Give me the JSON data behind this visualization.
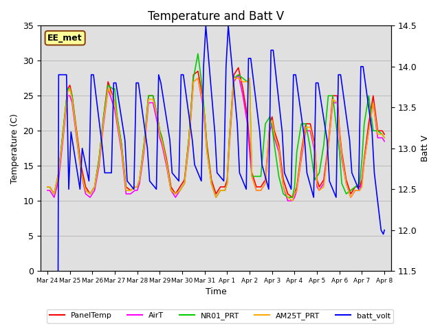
{
  "title": "Temperature and Batt V",
  "xlabel": "Time",
  "ylabel_left": "Temperature (C)",
  "ylabel_right": "Batt V",
  "ylim_left": [
    0,
    35
  ],
  "ylim_right": [
    11.5,
    14.5
  ],
  "background_color": "#ffffff",
  "plot_bg_color": "#e0e0e0",
  "annotation_text": "EE_met",
  "annotation_box_color": "#ffff99",
  "annotation_border_color": "#8b4513",
  "x_tick_labels": [
    "Mar 24",
    "Mar 25",
    "Mar 26",
    "Mar 27",
    "Mar 28",
    "Mar 29",
    "Mar 30",
    "Mar 31",
    "Apr 1",
    "Apr 2",
    "Apr 3",
    "Apr 4",
    "Apr 5",
    "Apr 6",
    "Apr 7",
    "Apr 8"
  ],
  "x_tick_positions": [
    0,
    1,
    2,
    3,
    4,
    5,
    6,
    7,
    8,
    9,
    10,
    11,
    12,
    13,
    14,
    15
  ],
  "series": {
    "PanelTemp": {
      "color": "#ff0000",
      "linewidth": 1.2,
      "data_x": [
        0.0,
        0.1,
        0.3,
        0.5,
        0.7,
        0.9,
        1.0,
        1.1,
        1.3,
        1.5,
        1.7,
        1.9,
        2.0,
        2.1,
        2.3,
        2.5,
        2.7,
        2.9,
        3.0,
        3.1,
        3.3,
        3.5,
        3.7,
        3.9,
        4.0,
        4.1,
        4.3,
        4.5,
        4.7,
        4.9,
        5.0,
        5.1,
        5.3,
        5.5,
        5.7,
        5.9,
        6.0,
        6.1,
        6.3,
        6.5,
        6.7,
        6.9,
        7.0,
        7.1,
        7.3,
        7.5,
        7.7,
        7.9,
        8.0,
        8.1,
        8.3,
        8.5,
        8.7,
        8.9,
        9.0,
        9.1,
        9.3,
        9.5,
        9.7,
        9.9,
        10.0,
        10.1,
        10.3,
        10.5,
        10.7,
        10.9,
        11.0,
        11.1,
        11.3,
        11.5,
        11.7,
        11.9,
        12.0,
        12.1,
        12.3,
        12.5,
        12.7,
        12.9,
        13.0,
        13.1,
        13.3,
        13.5,
        13.7,
        13.9,
        14.0,
        14.1,
        14.3,
        14.5,
        14.7,
        14.9,
        15.0
      ],
      "data_y": [
        12.0,
        12.0,
        11.0,
        14.0,
        20.0,
        26.0,
        26.5,
        25.0,
        20.0,
        15.0,
        12.0,
        11.0,
        11.5,
        12.0,
        16.0,
        22.0,
        27.0,
        25.0,
        24.0,
        22.0,
        18.0,
        12.0,
        11.5,
        12.0,
        12.0,
        13.0,
        18.0,
        25.0,
        25.0,
        22.0,
        20.0,
        19.0,
        16.0,
        12.0,
        11.0,
        12.0,
        12.5,
        13.0,
        19.0,
        28.0,
        28.5,
        25.0,
        22.0,
        18.0,
        13.0,
        11.0,
        12.0,
        12.0,
        13.0,
        19.0,
        28.0,
        29.0,
        26.0,
        22.0,
        18.0,
        14.0,
        12.0,
        12.0,
        13.0,
        21.0,
        22.0,
        20.0,
        18.0,
        13.0,
        11.0,
        10.5,
        11.0,
        12.0,
        17.0,
        21.0,
        21.0,
        18.0,
        13.0,
        12.0,
        13.0,
        18.0,
        25.0,
        25.0,
        20.0,
        17.0,
        13.0,
        11.0,
        12.0,
        12.0,
        13.0,
        16.0,
        21.0,
        25.0,
        20.0,
        20.0,
        19.5
      ]
    },
    "AirT": {
      "color": "#ff00ff",
      "linewidth": 1.2,
      "data_x": [
        0.0,
        0.1,
        0.3,
        0.5,
        0.7,
        0.9,
        1.0,
        1.1,
        1.3,
        1.5,
        1.7,
        1.9,
        2.0,
        2.1,
        2.3,
        2.5,
        2.7,
        2.9,
        3.0,
        3.1,
        3.3,
        3.5,
        3.7,
        3.9,
        4.0,
        4.1,
        4.3,
        4.5,
        4.7,
        4.9,
        5.0,
        5.1,
        5.3,
        5.5,
        5.7,
        5.9,
        6.0,
        6.1,
        6.3,
        6.5,
        6.7,
        6.9,
        7.0,
        7.1,
        7.3,
        7.5,
        7.7,
        7.9,
        8.0,
        8.1,
        8.3,
        8.5,
        8.7,
        8.9,
        9.0,
        9.1,
        9.3,
        9.5,
        9.7,
        9.9,
        10.0,
        10.1,
        10.3,
        10.5,
        10.7,
        10.9,
        11.0,
        11.1,
        11.3,
        11.5,
        11.7,
        11.9,
        12.0,
        12.1,
        12.3,
        12.5,
        12.7,
        12.9,
        13.0,
        13.1,
        13.3,
        13.5,
        13.7,
        13.9,
        14.0,
        14.1,
        14.3,
        14.5,
        14.7,
        14.9,
        15.0
      ],
      "data_y": [
        11.5,
        11.5,
        10.5,
        13.0,
        19.0,
        25.0,
        25.0,
        24.0,
        19.0,
        14.0,
        11.0,
        10.5,
        11.0,
        11.5,
        15.0,
        21.0,
        26.0,
        24.0,
        23.0,
        21.0,
        17.0,
        11.0,
        11.0,
        11.5,
        11.5,
        12.5,
        17.0,
        24.0,
        24.0,
        21.0,
        19.0,
        18.0,
        15.0,
        11.5,
        10.5,
        11.5,
        12.0,
        12.5,
        18.0,
        27.0,
        27.5,
        24.0,
        21.0,
        17.0,
        12.5,
        10.5,
        11.5,
        11.5,
        12.5,
        18.0,
        27.0,
        28.0,
        25.0,
        21.0,
        17.0,
        13.5,
        11.5,
        11.5,
        12.5,
        20.0,
        21.0,
        19.0,
        17.0,
        12.0,
        10.0,
        10.0,
        10.5,
        11.5,
        16.0,
        20.0,
        20.0,
        17.0,
        12.0,
        11.5,
        12.5,
        17.5,
        24.0,
        24.0,
        19.0,
        16.0,
        12.5,
        10.5,
        11.5,
        11.5,
        12.5,
        15.5,
        20.0,
        24.0,
        19.0,
        19.0,
        18.5
      ]
    },
    "NR01_PRT": {
      "color": "#00cc00",
      "linewidth": 1.2,
      "data_x": [
        0.0,
        0.1,
        0.3,
        0.5,
        0.7,
        0.9,
        1.0,
        1.1,
        1.3,
        1.5,
        1.7,
        1.9,
        2.0,
        2.1,
        2.3,
        2.5,
        2.7,
        2.9,
        3.0,
        3.1,
        3.3,
        3.5,
        3.7,
        3.9,
        4.0,
        4.1,
        4.3,
        4.5,
        4.7,
        4.9,
        5.0,
        5.1,
        5.3,
        5.5,
        5.7,
        5.9,
        6.0,
        6.1,
        6.3,
        6.5,
        6.7,
        6.9,
        7.0,
        7.1,
        7.3,
        7.5,
        7.7,
        7.9,
        8.0,
        8.1,
        8.3,
        8.5,
        8.7,
        8.9,
        9.0,
        9.1,
        9.3,
        9.5,
        9.7,
        9.9,
        10.0,
        10.1,
        10.3,
        10.5,
        10.7,
        10.9,
        11.0,
        11.1,
        11.3,
        11.5,
        11.7,
        11.9,
        12.0,
        12.1,
        12.3,
        12.5,
        12.7,
        12.9,
        13.0,
        13.1,
        13.3,
        13.5,
        13.7,
        13.9,
        14.0,
        14.1,
        14.3,
        14.5,
        14.7,
        14.9,
        15.0
      ],
      "data_y": [
        12.0,
        12.0,
        11.0,
        14.0,
        20.0,
        26.0,
        26.0,
        25.0,
        19.5,
        14.0,
        11.5,
        11.0,
        11.5,
        12.0,
        16.0,
        22.0,
        26.5,
        26.0,
        26.0,
        22.0,
        18.0,
        11.5,
        11.5,
        12.0,
        12.0,
        13.0,
        18.0,
        25.0,
        25.0,
        22.0,
        20.0,
        19.0,
        15.5,
        11.5,
        11.0,
        11.5,
        12.0,
        12.5,
        19.0,
        27.5,
        31.0,
        26.0,
        22.0,
        17.5,
        12.5,
        10.5,
        11.5,
        11.5,
        12.5,
        19.0,
        27.5,
        28.0,
        27.5,
        27.0,
        27.5,
        13.5,
        13.5,
        13.5,
        21.0,
        22.0,
        20.5,
        18.0,
        13.5,
        11.0,
        10.5,
        10.5,
        12.0,
        17.0,
        21.0,
        21.0,
        17.5,
        13.0,
        13.5,
        14.0,
        18.0,
        25.0,
        25.0,
        19.5,
        17.0,
        12.5,
        11.0,
        11.5,
        12.0,
        12.5,
        16.0,
        21.0,
        25.0,
        20.0,
        20.0,
        19.5,
        19.0
      ]
    },
    "AM25T_PRT": {
      "color": "#ffaa00",
      "linewidth": 1.2,
      "data_x": [
        0.0,
        0.1,
        0.3,
        0.5,
        0.7,
        0.9,
        1.0,
        1.1,
        1.3,
        1.5,
        1.7,
        1.9,
        2.0,
        2.1,
        2.3,
        2.5,
        2.7,
        2.9,
        3.0,
        3.1,
        3.3,
        3.5,
        3.7,
        3.9,
        4.0,
        4.1,
        4.3,
        4.5,
        4.7,
        4.9,
        5.0,
        5.1,
        5.3,
        5.5,
        5.7,
        5.9,
        6.0,
        6.1,
        6.3,
        6.5,
        6.7,
        6.9,
        7.0,
        7.1,
        7.3,
        7.5,
        7.7,
        7.9,
        8.0,
        8.1,
        8.3,
        8.5,
        8.7,
        8.9,
        9.0,
        9.1,
        9.3,
        9.5,
        9.7,
        9.9,
        10.0,
        10.1,
        10.3,
        10.5,
        10.7,
        10.9,
        11.0,
        11.1,
        11.3,
        11.5,
        11.7,
        11.9,
        12.0,
        12.1,
        12.3,
        12.5,
        12.7,
        12.9,
        13.0,
        13.1,
        13.3,
        13.5,
        13.7,
        13.9,
        14.0,
        14.1,
        14.3,
        14.5,
        14.7,
        14.9,
        15.0
      ],
      "data_y": [
        12.0,
        12.0,
        11.0,
        14.0,
        19.5,
        25.5,
        26.0,
        24.5,
        19.5,
        14.0,
        11.5,
        11.0,
        11.5,
        12.0,
        15.5,
        21.5,
        26.0,
        25.0,
        24.0,
        21.5,
        17.5,
        11.5,
        11.5,
        12.0,
        12.0,
        13.0,
        17.5,
        24.5,
        24.5,
        22.0,
        19.5,
        18.5,
        15.5,
        11.5,
        11.0,
        11.5,
        12.0,
        12.5,
        18.5,
        27.0,
        27.5,
        24.5,
        21.5,
        17.0,
        12.5,
        10.5,
        11.5,
        11.5,
        12.5,
        18.5,
        27.5,
        27.5,
        27.0,
        27.0,
        27.5,
        13.5,
        11.5,
        11.5,
        12.5,
        21.0,
        21.5,
        19.5,
        17.5,
        12.0,
        10.5,
        10.0,
        11.0,
        11.5,
        16.5,
        20.5,
        20.5,
        17.5,
        12.5,
        11.5,
        12.0,
        17.5,
        24.5,
        24.0,
        19.5,
        16.5,
        12.5,
        10.5,
        11.5,
        11.5,
        12.0,
        15.5,
        20.0,
        24.0,
        19.5,
        19.5,
        19.0
      ]
    },
    "batt_volt": {
      "color": "#0000ff",
      "linewidth": 1.2,
      "data_x": [
        0.0,
        0.05,
        0.15,
        0.4,
        0.5,
        0.85,
        0.95,
        1.05,
        1.45,
        1.55,
        1.85,
        1.95,
        2.05,
        2.45,
        2.55,
        2.85,
        2.95,
        3.05,
        3.45,
        3.55,
        3.85,
        3.95,
        4.05,
        4.45,
        4.55,
        4.85,
        4.95,
        5.05,
        5.45,
        5.55,
        5.85,
        5.95,
        6.05,
        6.45,
        6.55,
        6.85,
        6.95,
        7.05,
        7.45,
        7.55,
        7.85,
        7.95,
        8.05,
        8.45,
        8.55,
        8.85,
        8.95,
        9.05,
        9.45,
        9.55,
        9.85,
        9.95,
        10.05,
        10.45,
        10.55,
        10.85,
        10.95,
        11.05,
        11.45,
        11.55,
        11.85,
        11.95,
        12.05,
        12.45,
        12.55,
        12.85,
        12.95,
        13.05,
        13.45,
        13.55,
        13.85,
        13.95,
        14.05,
        14.45,
        14.55,
        14.85,
        14.95,
        15.0
      ],
      "data_y": [
        5.5,
        4.0,
        4.0,
        4.0,
        13.9,
        13.9,
        12.5,
        13.2,
        12.5,
        13.0,
        12.6,
        13.9,
        13.9,
        13.0,
        12.7,
        12.7,
        13.8,
        13.8,
        13.1,
        12.6,
        12.5,
        13.8,
        13.8,
        13.0,
        12.6,
        12.5,
        13.9,
        13.8,
        13.1,
        12.7,
        12.6,
        13.9,
        13.9,
        13.1,
        12.8,
        12.6,
        14.0,
        14.5,
        13.2,
        12.7,
        12.6,
        14.0,
        14.5,
        13.3,
        12.7,
        12.5,
        14.1,
        14.1,
        13.2,
        12.8,
        12.5,
        14.2,
        14.2,
        13.2,
        12.7,
        12.5,
        13.9,
        13.9,
        13.1,
        12.7,
        12.4,
        13.8,
        13.8,
        13.1,
        12.6,
        12.4,
        13.9,
        13.9,
        13.1,
        12.7,
        12.5,
        14.0,
        14.0,
        13.2,
        12.7,
        12.0,
        11.95,
        12.0
      ]
    }
  },
  "legend_entries": [
    "PanelTemp",
    "AirT",
    "NR01_PRT",
    "AM25T_PRT",
    "batt_volt"
  ],
  "legend_colors": [
    "#ff0000",
    "#ff00ff",
    "#00cc00",
    "#ffaa00",
    "#0000ff"
  ],
  "grid_color": "#aaaaaa",
  "title_fontsize": 12,
  "axis_fontsize": 9
}
